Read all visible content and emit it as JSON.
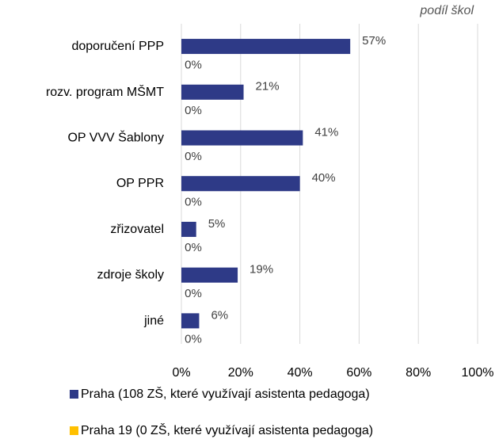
{
  "chart_data": {
    "type": "hbar",
    "annotation": "podíl škol",
    "categories": [
      "doporučení PPP",
      "rozv. program MŠMT",
      "OP VVV Šablony",
      "OP PPR",
      "zřizovatel",
      "zdroje školy",
      "jiné"
    ],
    "series": [
      {
        "name": "Praha (108 ZŠ, které využívají asistenta pedagoga)",
        "color": "#2e3a87",
        "values": [
          57,
          21,
          41,
          40,
          5,
          19,
          6
        ],
        "value_labels": [
          "57%",
          "21%",
          "41%",
          "40%",
          "5%",
          "19%",
          "6%"
        ]
      },
      {
        "name": "Praha 19 (0 ZŠ, které využívají asistenta pedagoga)",
        "color": "#ffc000",
        "values": [
          0,
          0,
          0,
          0,
          0,
          0,
          0
        ],
        "value_labels": [
          "0%",
          "0%",
          "0%",
          "0%",
          "0%",
          "0%",
          "0%"
        ]
      }
    ],
    "xlim": [
      0,
      100
    ],
    "xticks": [
      {
        "value": 0,
        "label": "0%"
      },
      {
        "value": 20,
        "label": "20%"
      },
      {
        "value": 40,
        "label": "40%"
      },
      {
        "value": 60,
        "label": "60%"
      },
      {
        "value": 80,
        "label": "80%"
      },
      {
        "value": 100,
        "label": "100%"
      }
    ],
    "grid": true
  }
}
